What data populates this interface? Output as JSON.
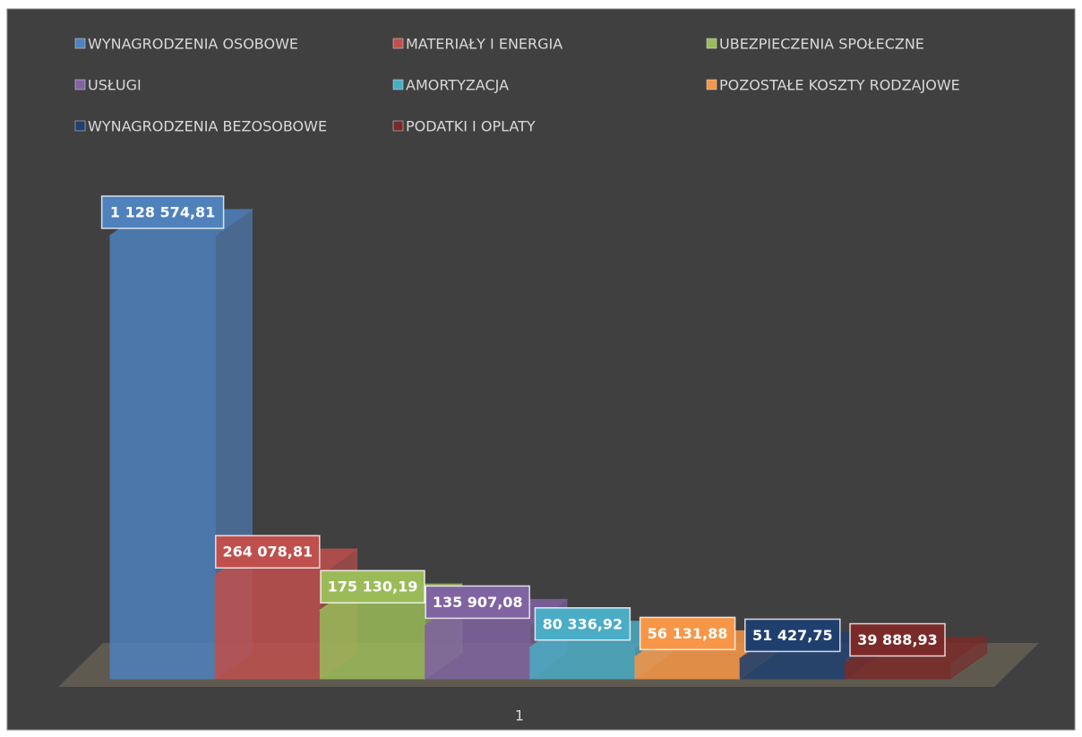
{
  "chart_data": {
    "type": "bar3d",
    "categories": [
      "1"
    ],
    "series": [
      {
        "name": "WYNAGRODZENIA OSOBOWE",
        "color": "#4f81bd",
        "values": [
          1128574.81
        ],
        "value_labels": [
          "1 128 574,81"
        ]
      },
      {
        "name": "MATERIAŁY I ENERGIA",
        "color": "#c0504d",
        "values": [
          264078.81
        ],
        "value_labels": [
          "264 078,81"
        ]
      },
      {
        "name": "UBEZPIECZENIA SPOŁECZNE",
        "color": "#9bbb59",
        "values": [
          175130.19
        ],
        "value_labels": [
          "175 130,19"
        ]
      },
      {
        "name": "USŁUGI",
        "color": "#8064a2",
        "values": [
          135907.08
        ],
        "value_labels": [
          "135 907,08"
        ]
      },
      {
        "name": "AMORTYZACJA",
        "color": "#4bacc6",
        "values": [
          80336.92
        ],
        "value_labels": [
          "80 336,92"
        ]
      },
      {
        "name": "POZOSTAŁE KOSZTY RODZAJOWE",
        "color": "#f79646",
        "values": [
          56131.88
        ],
        "value_labels": [
          "56 131,88"
        ]
      },
      {
        "name": "WYNAGRODZENIA BEZOSOBOWE",
        "color": "#1f3f6e",
        "values": [
          51427.75
        ],
        "value_labels": [
          "51 427,75"
        ]
      },
      {
        "name": "PODATKI I OPLATY",
        "color": "#7a2a28",
        "values": [
          39888.93
        ],
        "value_labels": [
          "39 888,93"
        ]
      }
    ]
  }
}
